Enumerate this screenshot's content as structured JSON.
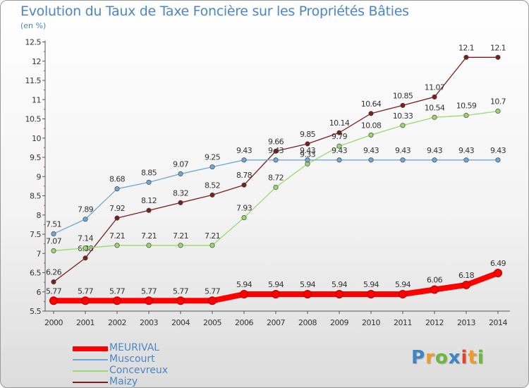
{
  "header": {
    "title": "Evolution du Taux de Taxe Foncière sur les Propriétés Bâties",
    "subtitle": "(en %)"
  },
  "logo": {
    "text": "Proxiti"
  },
  "chart_data": {
    "type": "line",
    "x": [
      "2000",
      "2001",
      "2002",
      "2003",
      "2004",
      "2005",
      "2006",
      "2007",
      "2008",
      "2009",
      "2010",
      "2011",
      "2012",
      "2013",
      "2014"
    ],
    "y_ticks": [
      "5.5",
      "6",
      "6.5",
      "7",
      "7.5",
      "8",
      "8.5",
      "9",
      "9.5",
      "10",
      "10.5",
      "11",
      "11.5",
      "12",
      "12.5"
    ],
    "ylim": [
      5.5,
      12.5
    ],
    "grid": false,
    "legend_position": "bottom-left",
    "series": [
      {
        "name": "Maizy",
        "color": "#7a1e1e",
        "values": [
          6.26,
          6.88,
          7.92,
          8.12,
          8.32,
          8.52,
          8.78,
          9.66,
          9.85,
          10.14,
          10.64,
          10.85,
          11.07,
          12.1,
          12.1
        ],
        "labels": [
          "6.26",
          "6.88",
          "7.92",
          "8.12",
          "8.32",
          "8.52",
          "8.78",
          "9.66",
          "9.85",
          "10.14",
          "10.64",
          "10.85",
          "11.07",
          "12.1",
          "12.1"
        ]
      },
      {
        "name": "Concevreux",
        "color": "#99d96b",
        "values": [
          7.07,
          7.14,
          7.21,
          7.21,
          7.21,
          7.21,
          7.93,
          8.72,
          9.33,
          9.79,
          10.08,
          10.33,
          10.54,
          10.59,
          10.7
        ],
        "labels": [
          "7.07",
          "7.14",
          "7.21",
          "7.21",
          "7.21",
          "7.21",
          "7.93",
          "8.72",
          "9.33",
          "9.79",
          "10.08",
          "10.33",
          "10.54",
          "10.59",
          "10.7"
        ]
      },
      {
        "name": "Muscourt",
        "color": "#6fa8d6",
        "values": [
          7.51,
          7.89,
          8.68,
          8.85,
          9.07,
          9.25,
          9.43,
          9.43,
          9.43,
          9.43,
          9.43,
          9.43,
          9.43,
          9.43,
          9.43
        ],
        "labels": [
          "7.51",
          "7.89",
          "8.68",
          "8.85",
          "9.07",
          "9.25",
          "9.43",
          "9.43",
          "9.43",
          "9.43",
          "9.43",
          "9.43",
          "9.43",
          "9.43",
          "9.43"
        ]
      },
      {
        "name": "MEURIVAL",
        "color": "#ff0000",
        "values": [
          5.77,
          5.77,
          5.77,
          5.77,
          5.77,
          5.77,
          5.94,
          5.94,
          5.94,
          5.94,
          5.94,
          5.94,
          6.06,
          6.18,
          6.49
        ],
        "labels": [
          "5.77",
          "5.77",
          "5.77",
          "5.77",
          "5.77",
          "5.77",
          "5.94",
          "5.94",
          "5.94",
          "5.94",
          "5.94",
          "5.94",
          "6.06",
          "6.18",
          "6.49"
        ]
      }
    ]
  }
}
